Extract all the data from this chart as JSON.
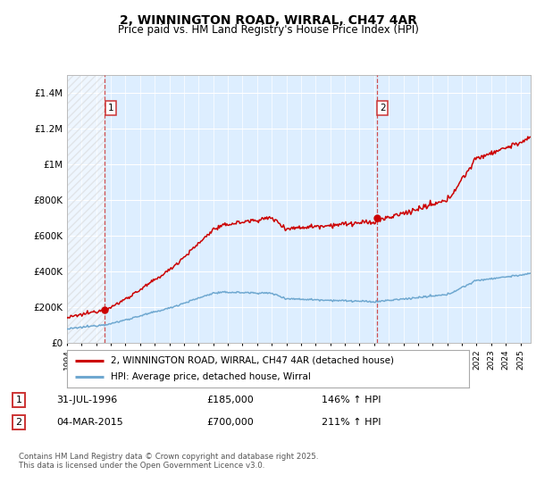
{
  "title": "2, WINNINGTON ROAD, WIRRAL, CH47 4AR",
  "subtitle": "Price paid vs. HM Land Registry's House Price Index (HPI)",
  "sale1_year": 1996.58,
  "sale1_price": 185000,
  "sale2_year": 2015.17,
  "sale2_price": 700000,
  "ylim": [
    0,
    1500000
  ],
  "xlim_start": 1994.0,
  "xlim_end": 2025.7,
  "hpi_color": "#6fa8d0",
  "price_color": "#cc0000",
  "plot_bg_color": "#ddeeff",
  "legend_labels": [
    "2, WINNINGTON ROAD, WIRRAL, CH47 4AR (detached house)",
    "HPI: Average price, detached house, Wirral"
  ],
  "footer": "Contains HM Land Registry data © Crown copyright and database right 2025.\nThis data is licensed under the Open Government Licence v3.0.",
  "yticks": [
    0,
    200000,
    400000,
    600000,
    800000,
    1000000,
    1200000,
    1400000
  ],
  "ytick_labels": [
    "£0",
    "£200K",
    "£400K",
    "£600K",
    "£800K",
    "£1M",
    "£1.2M",
    "£1.4M"
  ]
}
